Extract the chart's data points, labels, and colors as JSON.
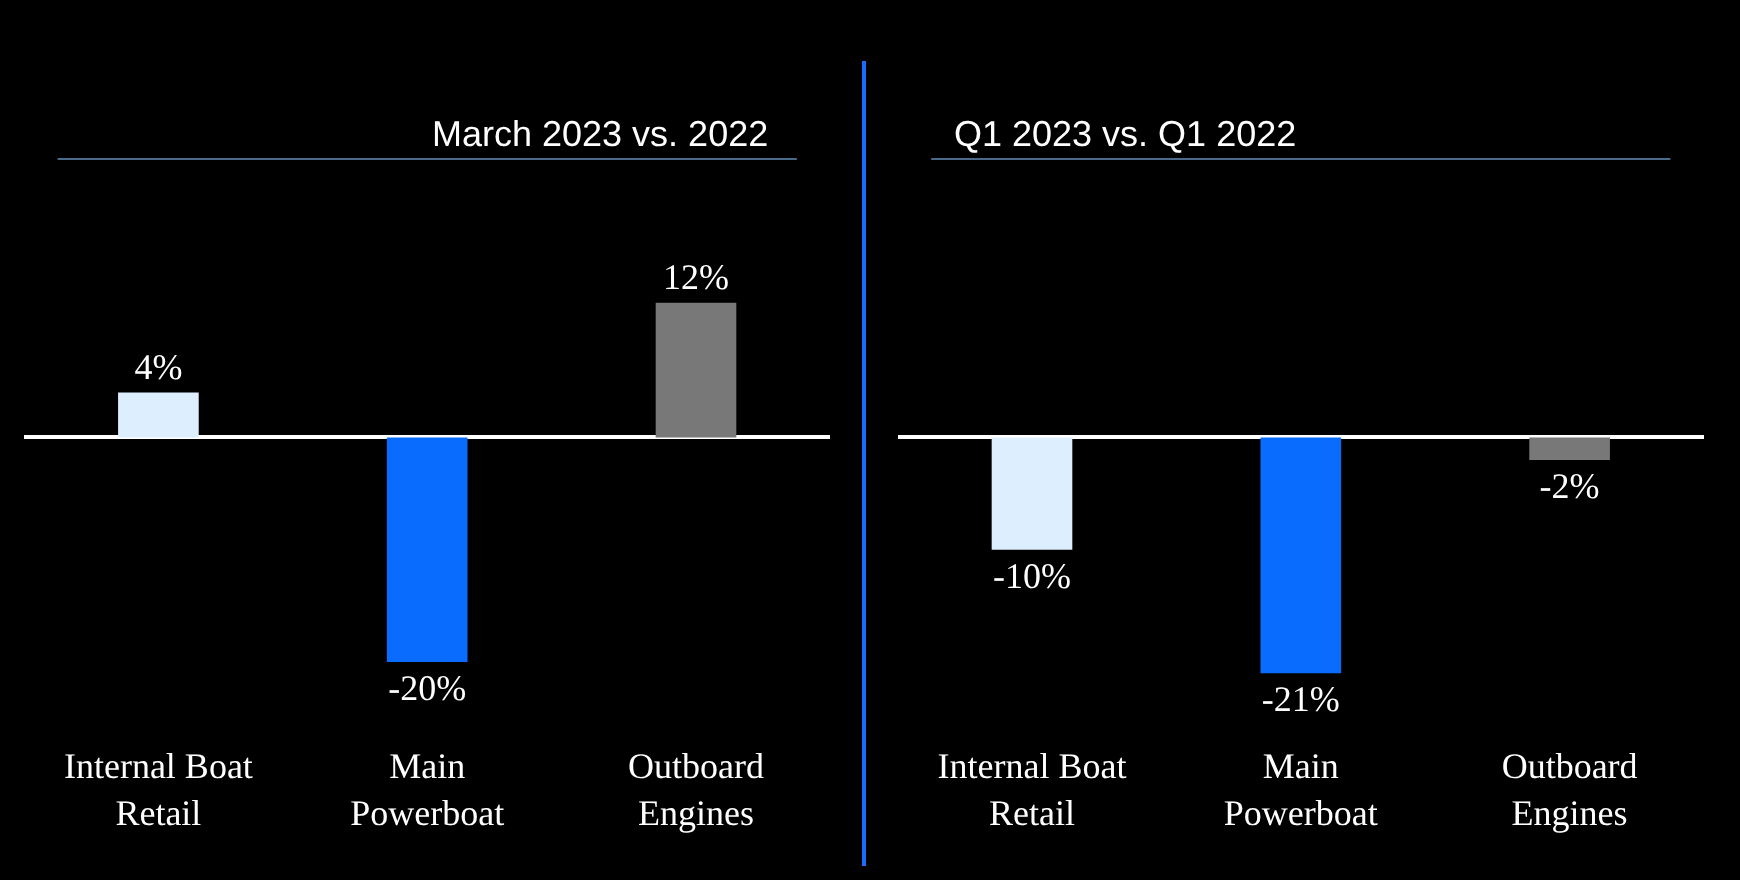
{
  "chart_data": [
    {
      "type": "bar",
      "title": "March 2023 vs. 2022",
      "categories": [
        "Internal Boat Retail",
        "Main Powerboat",
        "Outboard Engines"
      ],
      "values": [
        4,
        -20,
        12
      ],
      "colors": [
        "#ddeeff",
        "#0a6cff",
        "#787878"
      ],
      "value_labels": [
        "4%",
        "-20%",
        "12%"
      ]
    },
    {
      "type": "bar",
      "title": "Q1 2023 vs. Q1 2022",
      "categories": [
        "Internal Boat Retail",
        "Main Powerboat",
        "Outboard Engines"
      ],
      "values": [
        -10,
        -21,
        -2
      ],
      "colors": [
        "#ddeeff",
        "#0a6cff",
        "#787878"
      ],
      "value_labels": [
        "-10%",
        "-21%",
        "-2%"
      ]
    }
  ]
}
